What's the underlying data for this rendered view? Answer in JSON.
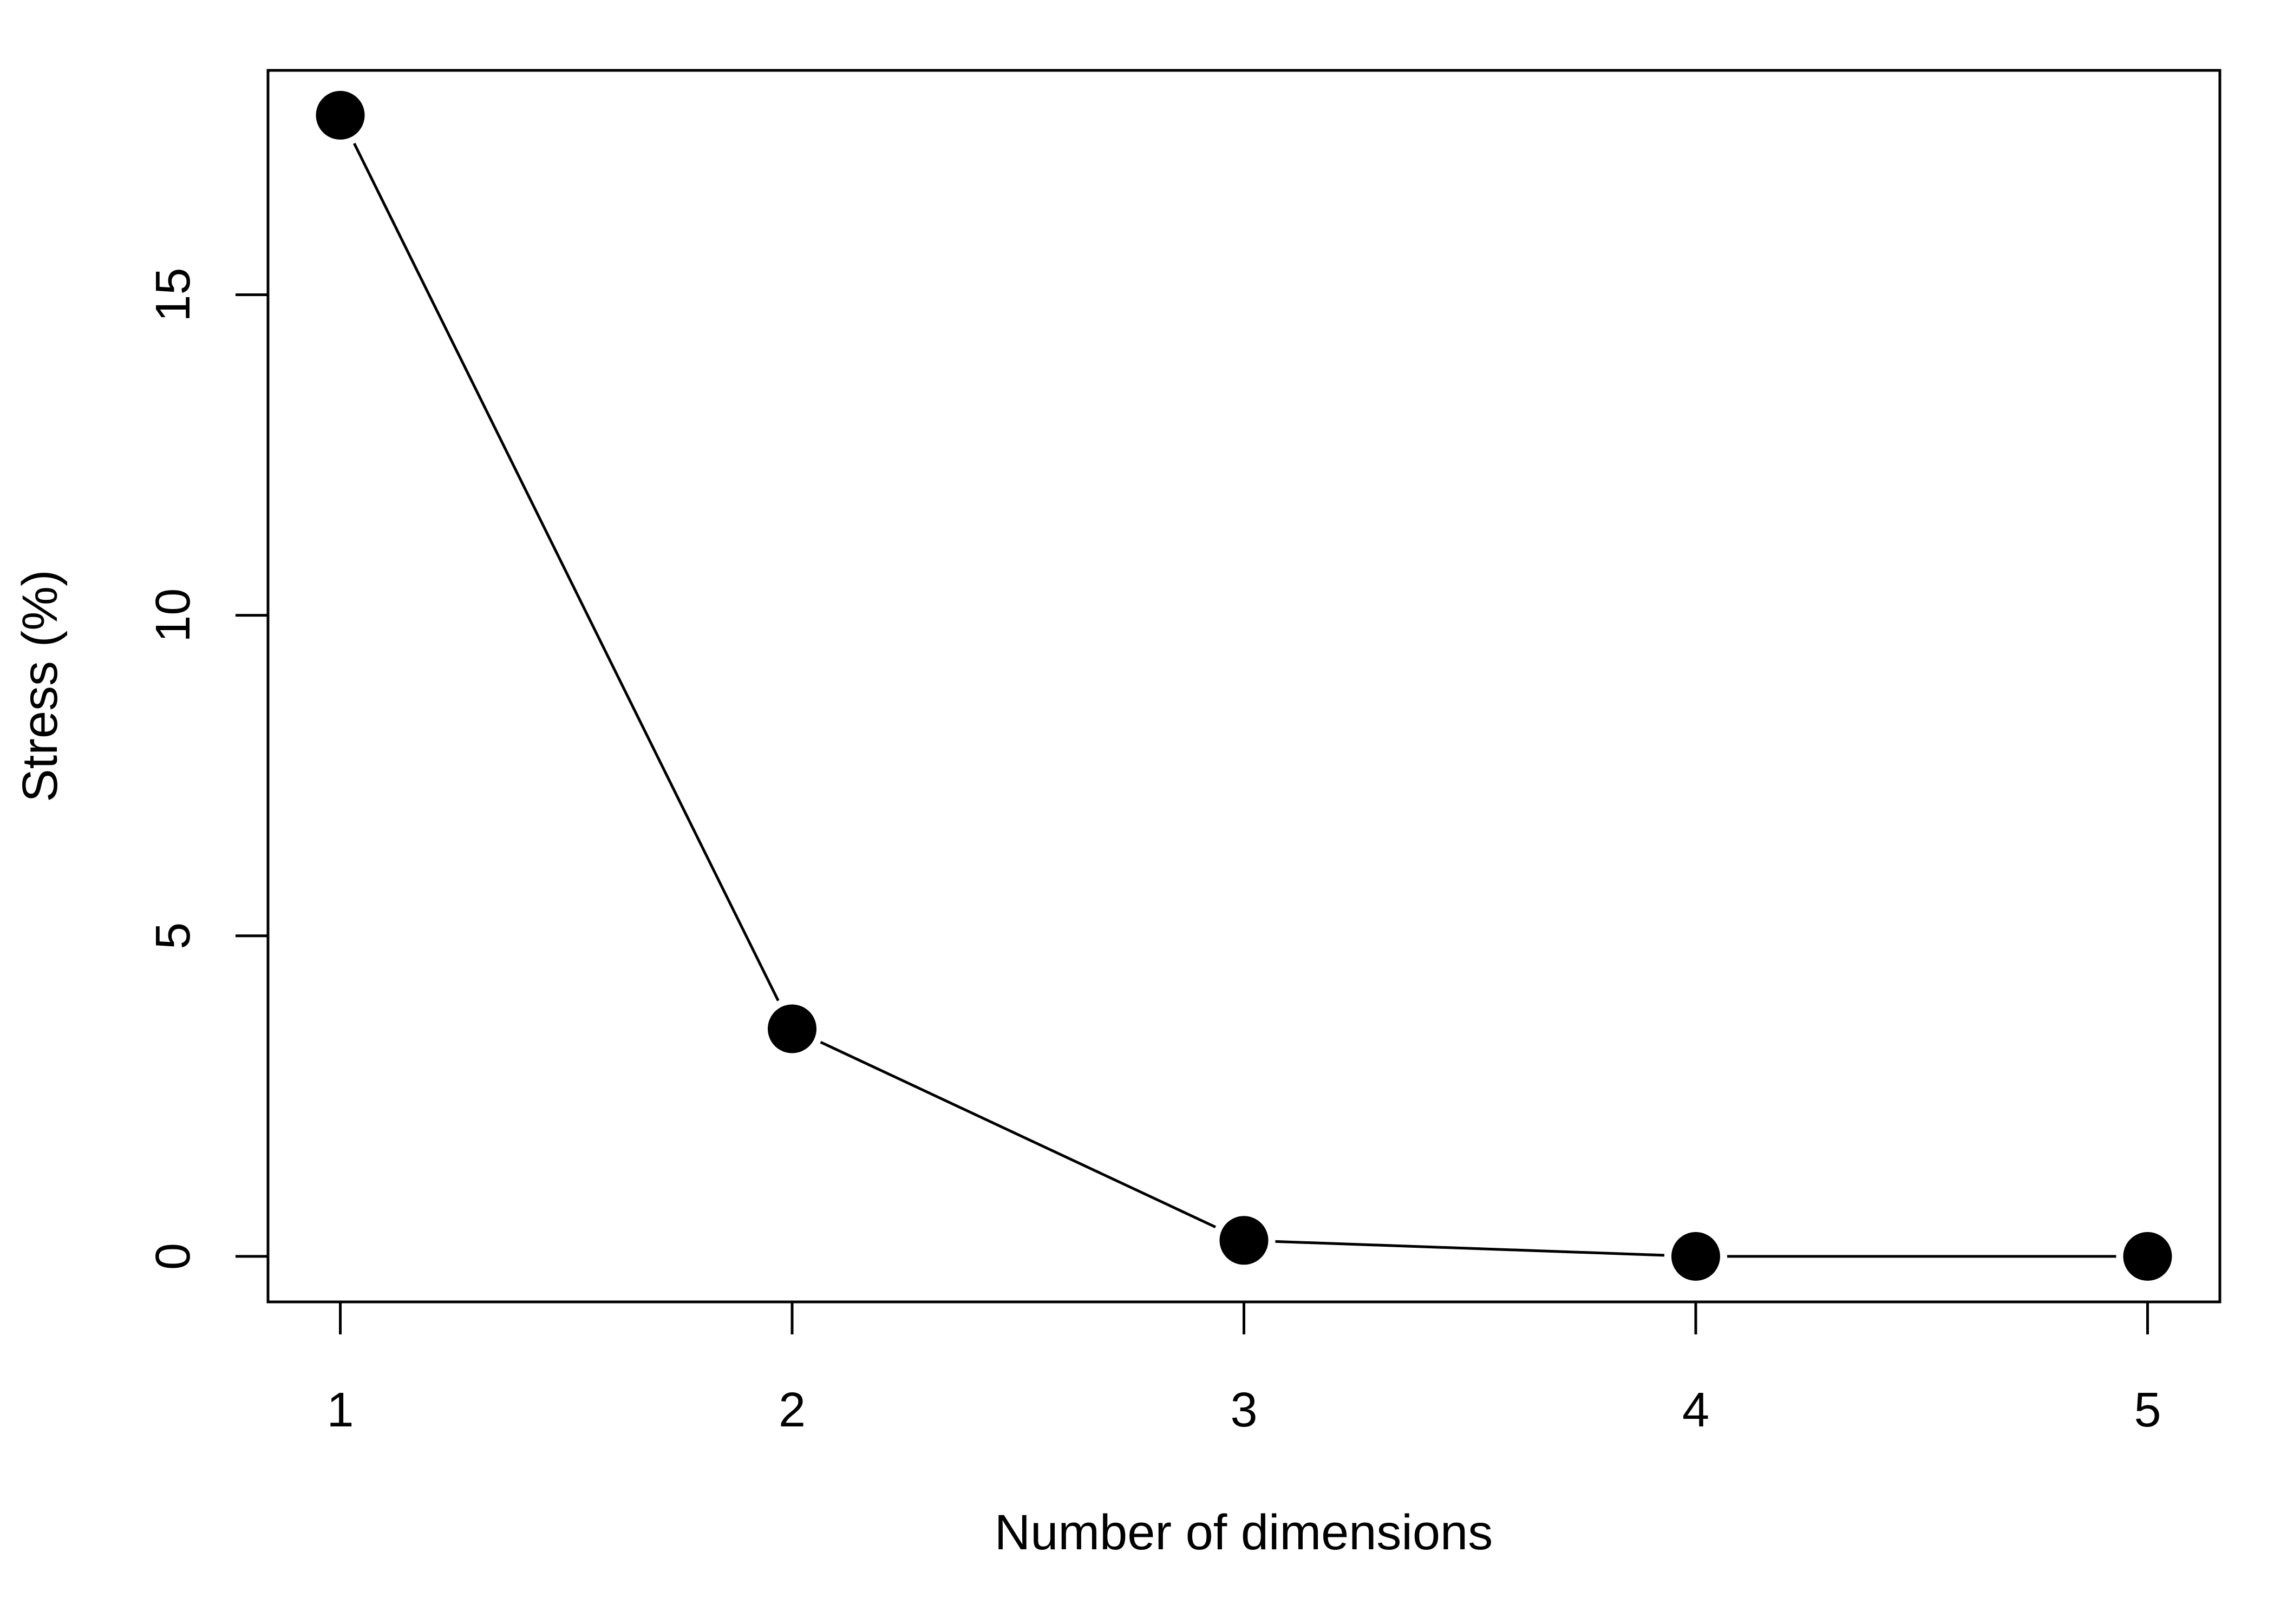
{
  "chart_data": {
    "type": "line",
    "title": "",
    "xlabel": "Number of dimensions",
    "ylabel": "Stress (%)",
    "x": [
      1,
      2,
      3,
      4,
      5
    ],
    "series": [
      {
        "values": [
          17.8,
          3.55,
          0.25,
          0.0,
          0.0
        ]
      }
    ],
    "xticks": [
      "1",
      "2",
      "3",
      "4",
      "5"
    ],
    "yticks": [
      "0",
      "5",
      "10",
      "15"
    ],
    "xlim": [
      0.84,
      5.16
    ],
    "ylim": [
      -0.71,
      18.5
    ],
    "grid": false,
    "legend": "none",
    "line_color": "#000000",
    "marker_color": "#000000",
    "marker": "filled-circle"
  }
}
